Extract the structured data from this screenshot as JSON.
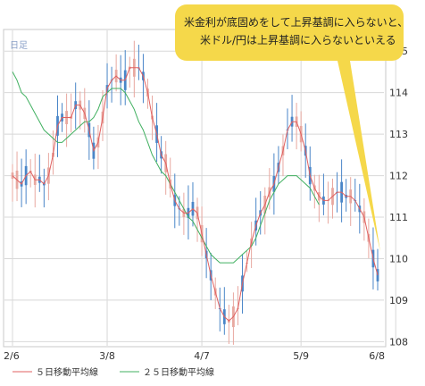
{
  "period_label": "日足",
  "callout": {
    "line1": "米金利が底固めをして上昇基調に入らないと、",
    "line2": "米ドル/円は上昇基調に入らないといえる",
    "color": "#f5d84a"
  },
  "legend": {
    "ma5_label": "５日移動平均線",
    "ma25_label": "２５日移動平均線"
  },
  "colors": {
    "up": "#e8a8a0",
    "down": "#4a86c8",
    "ma5": "#e06060",
    "ma25": "#40b060",
    "grid": "#d8d8d8",
    "frame": "#c8c8c8"
  },
  "chart_data": {
    "type": "candlestick",
    "ylim": [
      107.9,
      115.5
    ],
    "yticks": [
      108,
      109,
      110,
      111,
      112,
      113,
      114,
      115
    ],
    "xticks": [
      "2/6",
      "3/8",
      "4/7",
      "5/9",
      "6/8"
    ],
    "xtick_index": [
      0,
      21,
      42,
      64,
      85
    ],
    "series": [
      {
        "name": "５日移動平均線",
        "values": [
          112.0,
          111.9,
          111.8,
          112.0,
          112.1,
          111.9,
          111.9,
          111.8,
          112.0,
          112.5,
          113.2,
          113.4,
          113.4,
          113.4,
          113.7,
          113.7,
          113.5,
          113.1,
          112.6,
          112.8,
          113.4,
          114.1,
          114.3,
          114.4,
          114.3,
          114.3,
          114.6,
          114.6,
          114.6,
          114.4,
          114.0,
          113.4,
          113.0,
          112.5,
          112.3,
          111.8,
          111.4,
          111.2,
          111.1,
          111.1,
          111.2,
          111.1,
          110.6,
          110.1,
          109.6,
          109.2,
          108.8,
          108.6,
          108.5,
          108.6,
          108.8,
          109.4,
          109.9,
          110.4,
          110.8,
          111.1,
          111.3,
          111.6,
          111.8,
          112.2,
          112.6,
          113.1,
          113.3,
          113.3,
          113.0,
          112.6,
          112.0,
          111.7,
          111.5,
          111.4,
          111.4,
          111.5,
          111.6,
          111.6,
          111.5,
          111.5,
          111.4,
          111.2,
          111.0,
          110.5,
          110.0,
          109.6
        ]
      },
      {
        "name": "２５日移動平均線",
        "values": [
          114.5,
          114.3,
          114.0,
          113.9,
          113.7,
          113.5,
          113.3,
          113.1,
          113.0,
          112.9,
          112.8,
          112.8,
          112.9,
          113.0,
          113.1,
          113.2,
          113.3,
          113.3,
          113.4,
          113.6,
          113.9,
          114.0,
          114.1,
          114.1,
          114.1,
          114.0,
          113.8,
          113.6,
          113.3,
          113.1,
          112.8,
          112.5,
          112.3,
          112.1,
          112.0,
          111.8,
          111.6,
          111.4,
          111.2,
          111.0,
          110.9,
          110.7,
          110.5,
          110.3,
          110.1,
          110.0,
          109.9,
          109.9,
          109.9,
          109.9,
          110.0,
          110.1,
          110.2,
          110.3,
          110.5,
          110.8,
          111.1,
          111.4,
          111.6,
          111.8,
          111.9,
          112.0,
          112.0,
          112.0,
          111.9,
          111.8,
          111.7,
          111.5,
          111.3
        ]
      }
    ]
  }
}
